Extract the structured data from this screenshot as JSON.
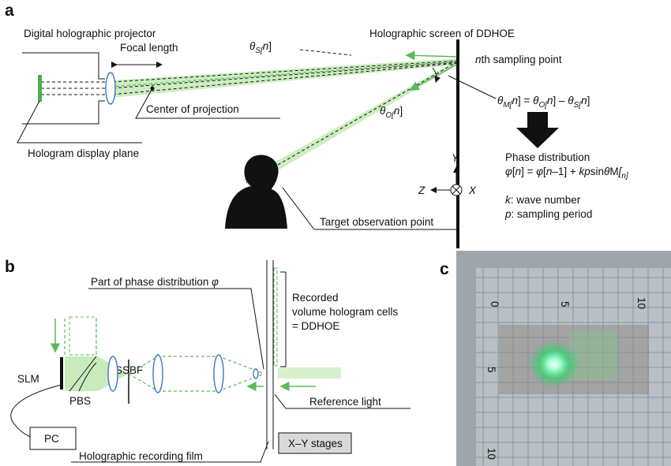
{
  "panel_a": {
    "label": "a",
    "projector": "Digital holographic projector",
    "focal_length": "Focal length",
    "center": "Center of projection",
    "display_plane": "Hologram display plane",
    "screen": "Holographic screen of DDHOE",
    "theta_s": [
      "θ",
      "S",
      "[",
      "n",
      "]"
    ],
    "sampling_point": [
      "n",
      "th sampling point"
    ],
    "theta_m_equation": [
      "θ",
      "M",
      "[",
      "n",
      "] = ",
      "θ",
      "O",
      "[",
      "n",
      "] – ",
      "θ",
      "S",
      "[",
      "n",
      "]"
    ],
    "theta_o": [
      "θ",
      "O",
      "[",
      "n",
      "]"
    ],
    "phase_title": "Phase distribution",
    "phase_equation": [
      "φ",
      "[",
      "n",
      "] = ",
      "φ",
      "[",
      "n",
      "–1] + ",
      "kp",
      "sin",
      "θ",
      "M",
      "[",
      "n",
      "]"
    ],
    "axis_y": "Y",
    "axis_z": "Z",
    "axis_x": "X",
    "k_note": [
      "k",
      ": wave number"
    ],
    "p_note": [
      "p",
      ": sampling period"
    ],
    "observation": "Target observation point"
  },
  "panel_b": {
    "label": "b",
    "phase_part": [
      "Part of phase distribution ",
      "φ"
    ],
    "recorded": [
      "Recorded",
      "volume hologram cells",
      "= DDHOE"
    ],
    "ssbf": "SSBF",
    "slm": "SLM",
    "pbs": "PBS",
    "pc": "PC",
    "reference": "Reference light",
    "film": "Holographic recording film",
    "stages": "X–Y stages"
  },
  "panel_c": {
    "label": "c",
    "ruler_top": [
      "0",
      "5",
      "10"
    ],
    "ruler_left": [
      "5",
      "10"
    ]
  }
}
